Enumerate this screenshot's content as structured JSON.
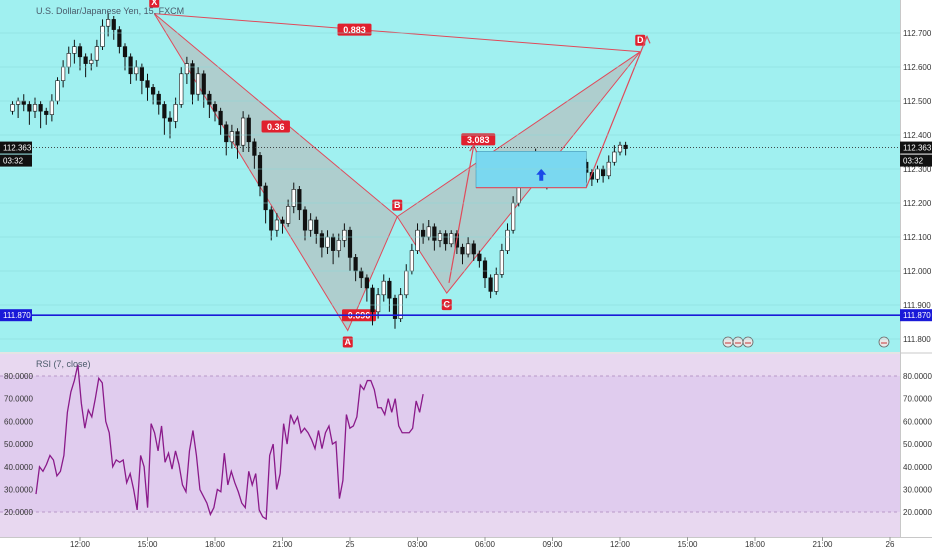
{
  "chart_title": "U.S. Dollar/Japanese Yen, 15, FXCM",
  "colors": {
    "main_bg": "#a0f0f0",
    "rsi_bg": "#e8d8f0",
    "rsi_band": "#e0ccee",
    "pattern_fill": "#b0c8c8",
    "pattern_stroke": "#e04a5a",
    "rsi_line": "#8a1a8a",
    "support_line": "#1a1ad8",
    "candle": "#111111",
    "label_red": "#e0202e",
    "price_tag": "#111111",
    "box_fill": "#7ad8f0",
    "arrow_blue": "#1a4ae8"
  },
  "price_axis": {
    "ticks": [
      "112.700",
      "112.600",
      "112.500",
      "112.400",
      "112.300",
      "112.200",
      "112.100",
      "112.000",
      "111.900",
      "111.800"
    ],
    "current_price": "112.363",
    "countdown": "03:32",
    "support_price": "111.870"
  },
  "time_axis": {
    "ticks": [
      "12:00",
      "15:00",
      "18:00",
      "21:00",
      "25",
      "03:00",
      "06:00",
      "09:00",
      "12:00",
      "15:00",
      "18:00",
      "21:00",
      "26"
    ]
  },
  "rsi": {
    "label": "RSI (7, close)",
    "ticks": [
      "80.0000",
      "70.0000",
      "60.0000",
      "50.0000",
      "40.0000",
      "30.0000",
      "20.0000"
    ]
  },
  "pattern": {
    "points": [
      {
        "label": "X",
        "t": 3.3,
        "price": 112.757
      },
      {
        "label": "A",
        "t": 11.9,
        "price": 111.825
      },
      {
        "label": "B",
        "t": 14.1,
        "price": 112.16
      },
      {
        "label": "C",
        "t": 16.3,
        "price": 111.935
      },
      {
        "label": "D",
        "t": 24.9,
        "price": 112.645
      }
    ],
    "ratios": [
      {
        "text": "0.883",
        "t": 12.2,
        "price": 112.71
      },
      {
        "text": "0.36",
        "t": 8.7,
        "price": 112.425
      },
      {
        "text": "0.696",
        "t": 12.4,
        "price": 111.87
      },
      {
        "text": "3.083",
        "t": 17.7,
        "price": 112.387
      }
    ]
  },
  "rsi_values": [
    28,
    40,
    38,
    41,
    45,
    43,
    36,
    38,
    45,
    64,
    73,
    78,
    85,
    68,
    57,
    65,
    62,
    70,
    79,
    77,
    60,
    55,
    40,
    43,
    42,
    43,
    33,
    37,
    30,
    21,
    45,
    40,
    22,
    59,
    55,
    47,
    58,
    42,
    46,
    39,
    47,
    41,
    32,
    29,
    47,
    56,
    45,
    30,
    27,
    24,
    19,
    22,
    30,
    29,
    46,
    32,
    38,
    33,
    29,
    24,
    22,
    38,
    32,
    37,
    21,
    18,
    17,
    45,
    50,
    30,
    37,
    59,
    50,
    63,
    59,
    62,
    55,
    57,
    55,
    52,
    48,
    56,
    48,
    55,
    58,
    50,
    51,
    26,
    34,
    63,
    57,
    58,
    62,
    76,
    74,
    78,
    78,
    74,
    66,
    66,
    63,
    70,
    64,
    70,
    58,
    55,
    55,
    55,
    57,
    69,
    64,
    72
  ],
  "candles": [
    [
      112.47,
      112.49,
      112.46,
      112.5
    ],
    [
      112.49,
      112.5,
      112.45,
      112.51
    ],
    [
      112.5,
      112.49,
      112.47,
      112.52
    ],
    [
      112.49,
      112.47,
      112.43,
      112.5
    ],
    [
      112.47,
      112.49,
      112.45,
      112.51
    ],
    [
      112.49,
      112.47,
      112.42,
      112.5
    ],
    [
      112.47,
      112.46,
      112.43,
      112.48
    ],
    [
      112.46,
      112.5,
      112.44,
      112.52
    ],
    [
      112.5,
      112.56,
      112.49,
      112.57
    ],
    [
      112.56,
      112.6,
      112.54,
      112.62
    ],
    [
      112.6,
      112.64,
      112.58,
      112.66
    ],
    [
      112.64,
      112.66,
      112.61,
      112.68
    ],
    [
      112.66,
      112.63,
      112.59,
      112.67
    ],
    [
      112.63,
      112.61,
      112.57,
      112.64
    ],
    [
      112.61,
      112.62,
      112.59,
      112.64
    ],
    [
      112.62,
      112.66,
      112.6,
      112.68
    ],
    [
      112.66,
      112.72,
      112.65,
      112.74
    ],
    [
      112.72,
      112.74,
      112.69,
      112.76
    ],
    [
      112.74,
      112.71,
      112.68,
      112.75
    ],
    [
      112.71,
      112.66,
      112.64,
      112.72
    ],
    [
      112.66,
      112.63,
      112.59,
      112.67
    ],
    [
      112.63,
      112.58,
      112.55,
      112.64
    ],
    [
      112.58,
      112.6,
      112.56,
      112.62
    ],
    [
      112.6,
      112.56,
      112.52,
      112.61
    ],
    [
      112.56,
      112.54,
      112.5,
      112.58
    ],
    [
      112.54,
      112.52,
      112.49,
      112.55
    ],
    [
      112.52,
      112.49,
      112.46,
      112.53
    ],
    [
      112.49,
      112.45,
      112.4,
      112.5
    ],
    [
      112.45,
      112.44,
      112.39,
      112.47
    ],
    [
      112.44,
      112.49,
      112.42,
      112.51
    ],
    [
      112.49,
      112.58,
      112.48,
      112.6
    ],
    [
      112.58,
      112.61,
      112.55,
      112.63
    ],
    [
      112.61,
      112.52,
      112.49,
      112.62
    ],
    [
      112.52,
      112.58,
      112.5,
      112.6
    ],
    [
      112.58,
      112.52,
      112.48,
      112.59
    ],
    [
      112.52,
      112.49,
      112.45,
      112.53
    ],
    [
      112.49,
      112.47,
      112.44,
      112.5
    ],
    [
      112.47,
      112.43,
      112.4,
      112.48
    ],
    [
      112.43,
      112.38,
      112.34,
      112.44
    ],
    [
      112.38,
      112.41,
      112.36,
      112.43
    ],
    [
      112.41,
      112.37,
      112.33,
      112.42
    ],
    [
      112.37,
      112.45,
      112.35,
      112.47
    ],
    [
      112.45,
      112.38,
      112.35,
      112.46
    ],
    [
      112.38,
      112.34,
      112.3,
      112.39
    ],
    [
      112.34,
      112.25,
      112.22,
      112.35
    ],
    [
      112.25,
      112.18,
      112.14,
      112.26
    ],
    [
      112.18,
      112.12,
      112.09,
      112.19
    ],
    [
      112.12,
      112.15,
      112.1,
      112.17
    ],
    [
      112.15,
      112.14,
      112.11,
      112.16
    ],
    [
      112.14,
      112.19,
      112.13,
      112.21
    ],
    [
      112.19,
      112.24,
      112.17,
      112.26
    ],
    [
      112.24,
      112.18,
      112.15,
      112.25
    ],
    [
      112.18,
      112.12,
      112.09,
      112.19
    ],
    [
      112.12,
      112.15,
      112.1,
      112.17
    ],
    [
      112.15,
      112.11,
      112.08,
      112.16
    ],
    [
      112.11,
      112.07,
      112.04,
      112.12
    ],
    [
      112.07,
      112.1,
      112.05,
      112.12
    ],
    [
      112.1,
      112.06,
      112.02,
      112.11
    ],
    [
      112.06,
      112.09,
      112.04,
      112.11
    ],
    [
      112.09,
      112.12,
      112.07,
      112.14
    ],
    [
      112.12,
      112.04,
      112.0,
      112.13
    ],
    [
      112.04,
      112.0,
      111.97,
      112.05
    ],
    [
      112.0,
      111.98,
      111.95,
      112.01
    ],
    [
      111.98,
      111.95,
      111.91,
      111.99
    ],
    [
      111.95,
      111.88,
      111.84,
      111.96
    ],
    [
      111.88,
      111.93,
      111.86,
      111.95
    ],
    [
      111.93,
      111.97,
      111.91,
      111.99
    ],
    [
      111.97,
      111.92,
      111.88,
      111.98
    ],
    [
      111.92,
      111.86,
      111.83,
      111.93
    ],
    [
      111.86,
      111.93,
      111.85,
      111.95
    ],
    [
      111.93,
      112.0,
      111.92,
      112.02
    ],
    [
      112.0,
      112.06,
      111.99,
      112.08
    ],
    [
      112.06,
      112.12,
      112.05,
      112.14
    ],
    [
      112.12,
      112.1,
      112.08,
      112.14
    ],
    [
      112.1,
      112.13,
      112.09,
      112.15
    ],
    [
      112.13,
      112.09,
      112.06,
      112.14
    ],
    [
      112.09,
      112.11,
      112.07,
      112.12
    ],
    [
      112.11,
      112.08,
      112.06,
      112.12
    ],
    [
      112.08,
      112.11,
      112.07,
      112.12
    ],
    [
      112.11,
      112.07,
      112.05,
      112.12
    ],
    [
      112.07,
      112.05,
      112.02,
      112.08
    ],
    [
      112.05,
      112.08,
      112.04,
      112.1
    ],
    [
      112.08,
      112.05,
      112.03,
      112.09
    ],
    [
      112.05,
      112.03,
      112.01,
      112.06
    ],
    [
      112.03,
      111.98,
      111.95,
      112.04
    ],
    [
      111.98,
      111.94,
      111.92,
      111.99
    ],
    [
      111.94,
      111.99,
      111.93,
      112.01
    ],
    [
      111.99,
      112.06,
      111.98,
      112.08
    ],
    [
      112.06,
      112.12,
      112.05,
      112.14
    ],
    [
      112.12,
      112.2,
      112.11,
      112.22
    ],
    [
      112.2,
      112.28,
      112.19,
      112.3
    ],
    [
      112.28,
      112.33,
      112.26,
      112.35
    ],
    [
      112.33,
      112.31,
      112.28,
      112.34
    ],
    [
      112.31,
      112.34,
      112.3,
      112.36
    ],
    [
      112.34,
      112.3,
      112.27,
      112.35
    ],
    [
      112.3,
      112.27,
      112.24,
      112.31
    ],
    [
      112.27,
      112.31,
      112.26,
      112.33
    ],
    [
      112.31,
      112.28,
      112.25,
      112.32
    ],
    [
      112.28,
      112.3,
      112.27,
      112.32
    ],
    [
      112.3,
      112.33,
      112.29,
      112.35
    ],
    [
      112.33,
      112.29,
      112.26,
      112.34
    ],
    [
      112.29,
      112.32,
      112.28,
      112.34
    ],
    [
      112.32,
      112.29,
      112.26,
      112.33
    ],
    [
      112.29,
      112.27,
      112.25,
      112.3
    ],
    [
      112.27,
      112.3,
      112.26,
      112.31
    ],
    [
      112.3,
      112.28,
      112.26,
      112.31
    ],
    [
      112.28,
      112.32,
      112.27,
      112.34
    ],
    [
      112.32,
      112.35,
      112.31,
      112.37
    ],
    [
      112.35,
      112.37,
      112.34,
      112.38
    ],
    [
      112.37,
      112.36,
      112.34,
      112.38
    ]
  ]
}
